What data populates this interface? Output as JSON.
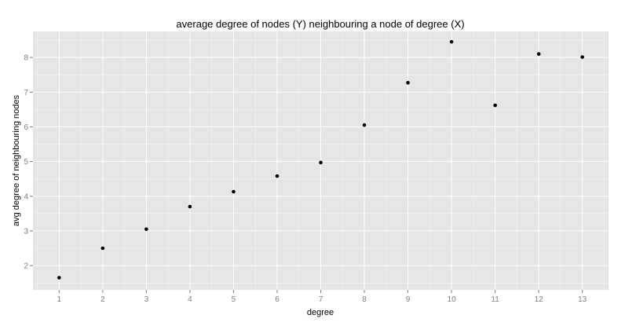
{
  "chart_data": {
    "type": "scatter",
    "title": "average degree of nodes (Y) neighbouring a node of degree (X)",
    "xlabel": "degree",
    "ylabel": "avg degree of neighbouring nodes",
    "x_ticks": [
      1,
      2,
      3,
      4,
      5,
      6,
      7,
      8,
      9,
      10,
      11,
      12,
      13
    ],
    "y_ticks": [
      2,
      3,
      4,
      5,
      6,
      7,
      8
    ],
    "xlim": [
      0.4,
      13.6
    ],
    "ylim": [
      1.3,
      8.75
    ],
    "grid": true,
    "legend": "none",
    "point_color": "#000000",
    "panel_color": "#e5e5e5",
    "x": [
      1,
      2,
      3,
      4,
      5,
      6,
      7,
      8,
      9,
      10,
      11,
      12,
      13
    ],
    "y": [
      1.65,
      2.5,
      3.05,
      3.7,
      4.13,
      4.58,
      4.97,
      6.05,
      7.27,
      8.45,
      6.62,
      8.1,
      8.01
    ]
  }
}
